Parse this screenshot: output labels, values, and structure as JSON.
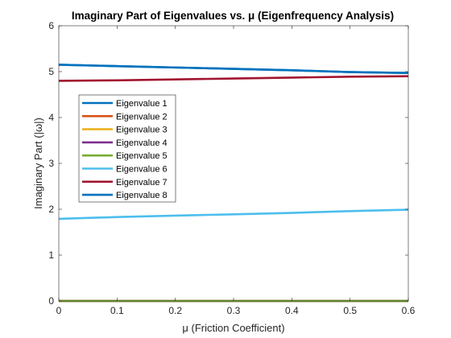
{
  "chart_data": {
    "type": "line",
    "title": "Imaginary Part of Eigenvalues vs. μ (Eigenfrequency Analysis)",
    "xlabel": "μ (Friction Coefficient)",
    "ylabel": "Imaginary Part (|ω|)",
    "xlim": [
      0,
      0.6
    ],
    "ylim": [
      0,
      6
    ],
    "xticks": [
      0,
      0.1,
      0.2,
      0.3,
      0.4,
      0.5,
      0.6
    ],
    "xtick_labels": [
      "0",
      "0.1",
      "0.2",
      "0.3",
      "0.4",
      "0.5",
      "0.6"
    ],
    "yticks": [
      0,
      1,
      2,
      3,
      4,
      5,
      6
    ],
    "ytick_labels": [
      "0",
      "1",
      "2",
      "3",
      "4",
      "5",
      "6"
    ],
    "grid": false,
    "legend_position": "upper-left",
    "x": [
      0,
      0.1,
      0.2,
      0.3,
      0.4,
      0.5,
      0.6
    ],
    "series": [
      {
        "name": "Eigenvalue 1",
        "color": "#0072BD",
        "values": [
          5.15,
          5.12,
          5.09,
          5.06,
          5.03,
          4.99,
          4.97
        ]
      },
      {
        "name": "Eigenvalue 2",
        "color": "#D95319",
        "values": [
          0,
          0,
          0,
          0,
          0,
          0,
          0
        ]
      },
      {
        "name": "Eigenvalue 3",
        "color": "#EDB120",
        "values": [
          0,
          0,
          0,
          0,
          0,
          0,
          0
        ]
      },
      {
        "name": "Eigenvalue 4",
        "color": "#7E2F8E",
        "values": [
          0,
          0,
          0,
          0,
          0,
          0,
          0
        ]
      },
      {
        "name": "Eigenvalue 5",
        "color": "#77AC30",
        "values": [
          0,
          0,
          0,
          0,
          0,
          0,
          0
        ]
      },
      {
        "name": "Eigenvalue 6",
        "color": "#4DBEEE",
        "values": [
          1.79,
          1.83,
          1.86,
          1.89,
          1.92,
          1.96,
          1.99
        ]
      },
      {
        "name": "Eigenvalue 7",
        "color": "#A2142F",
        "values": [
          4.8,
          4.81,
          4.83,
          4.85,
          4.87,
          4.89,
          4.9
        ]
      },
      {
        "name": "Eigenvalue 8",
        "color": "#0072BD",
        "values": [
          5.15,
          5.12,
          5.09,
          5.06,
          5.03,
          4.99,
          4.97
        ]
      }
    ]
  }
}
